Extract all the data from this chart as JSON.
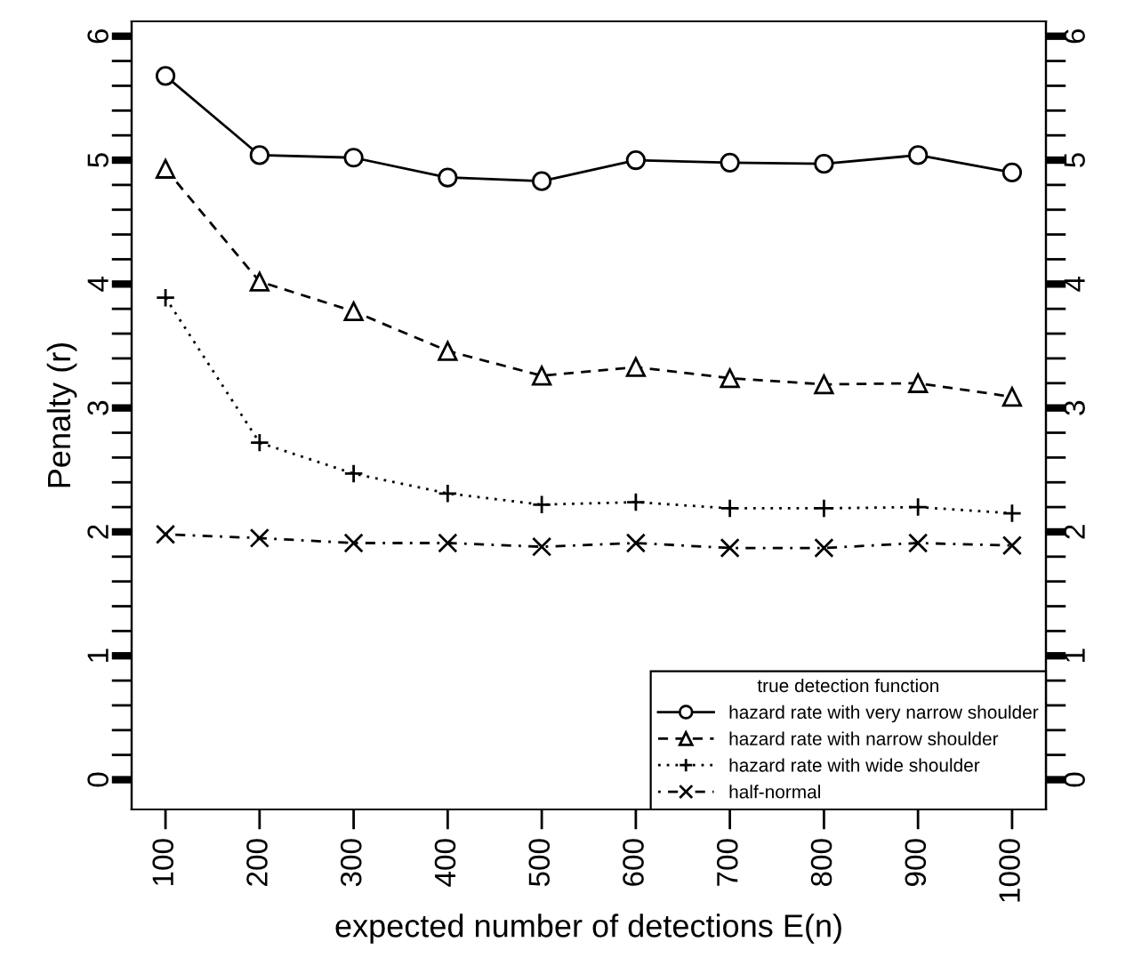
{
  "chart_data": {
    "type": "line",
    "xlabel": "expected number of detections E(n)",
    "ylabel": "Penalty (r)",
    "legend_title": "true detection function",
    "legend": "bottom right",
    "grid": false,
    "x": [
      100,
      200,
      300,
      400,
      500,
      600,
      700,
      800,
      900,
      1000
    ],
    "xlim": [
      64,
      1036
    ],
    "xticks": [
      100,
      200,
      300,
      400,
      500,
      600,
      700,
      800,
      900,
      1000
    ],
    "ylim": [
      -0.24,
      6.12
    ],
    "yticks": [
      0,
      {
        "value": 0.2,
        "label": null
      },
      {
        "value": 0.4,
        "label": null
      },
      {
        "value": 0.6,
        "label": null
      },
      {
        "value": 0.8,
        "label": null
      },
      1,
      {
        "value": 1.2,
        "label": null
      },
      {
        "value": 1.4,
        "label": null
      },
      {
        "value": 1.6,
        "label": null
      },
      {
        "value": 1.8,
        "label": null
      },
      2,
      {
        "value": 2.2,
        "label": null
      },
      {
        "value": 2.4,
        "label": null
      },
      {
        "value": 2.6,
        "label": null
      },
      {
        "value": 2.8,
        "label": null
      },
      3,
      {
        "value": 3.2,
        "label": null
      },
      {
        "value": 3.4,
        "label": null
      },
      {
        "value": 3.6,
        "label": null
      },
      {
        "value": 3.8,
        "label": null
      },
      4,
      {
        "value": 4.2,
        "label": null
      },
      {
        "value": 4.4,
        "label": null
      },
      {
        "value": 4.6,
        "label": null
      },
      {
        "value": 4.8,
        "label": null
      },
      5,
      {
        "value": 5.2,
        "label": null
      },
      {
        "value": 5.4,
        "label": null
      },
      {
        "value": 5.6,
        "label": null
      },
      {
        "value": 5.8,
        "label": null
      },
      6
    ],
    "y2lim": [
      -0.24,
      6.12
    ],
    "y2ticks": [
      0,
      {
        "value": 0.2,
        "label": null
      },
      {
        "value": 0.4,
        "label": null
      },
      {
        "value": 0.6,
        "label": null
      },
      {
        "value": 0.8,
        "label": null
      },
      1,
      {
        "value": 1.2,
        "label": null
      },
      {
        "value": 1.4,
        "label": null
      },
      {
        "value": 1.6,
        "label": null
      },
      {
        "value": 1.8,
        "label": null
      },
      2,
      {
        "value": 2.2,
        "label": null
      },
      {
        "value": 2.4,
        "label": null
      },
      {
        "value": 2.6,
        "label": null
      },
      {
        "value": 2.8,
        "label": null
      },
      3,
      {
        "value": 3.2,
        "label": null
      },
      {
        "value": 3.4,
        "label": null
      },
      {
        "value": 3.6,
        "label": null
      },
      {
        "value": 3.8,
        "label": null
      },
      4,
      {
        "value": 4.2,
        "label": null
      },
      {
        "value": 4.4,
        "label": null
      },
      {
        "value": 4.6,
        "label": null
      },
      {
        "value": 4.8,
        "label": null
      },
      5,
      {
        "value": 5.2,
        "label": null
      },
      {
        "value": 5.4,
        "label": null
      },
      {
        "value": 5.6,
        "label": null
      },
      {
        "value": 5.8,
        "label": null
      },
      6
    ],
    "series": [
      {
        "name": "hazard rate with very narrow shoulder",
        "color": "#000000",
        "marker": "circle",
        "line_style": "solid",
        "values": [
          5.68,
          5.04,
          5.02,
          4.86,
          4.83,
          5.0,
          4.98,
          4.97,
          5.04,
          4.9
        ]
      },
      {
        "name": "hazard rate with narrow shoulder",
        "color": "#000000",
        "marker": "triangle",
        "line_style": "dashed",
        "values": [
          4.93,
          4.02,
          3.78,
          3.46,
          3.26,
          3.33,
          3.24,
          3.19,
          3.2,
          3.09
        ]
      },
      {
        "name": "hazard rate with wide shoulder",
        "color": "#000000",
        "marker": "cross",
        "line_style": "dotted",
        "values": [
          3.89,
          2.72,
          2.47,
          2.31,
          2.22,
          2.24,
          2.19,
          2.19,
          2.2,
          2.15
        ]
      },
      {
        "name": "half-normal",
        "color": "#000000",
        "marker": "x",
        "line_style": "dashdot",
        "values": [
          1.98,
          1.95,
          1.91,
          1.91,
          1.88,
          1.91,
          1.87,
          1.87,
          1.91,
          1.89
        ]
      }
    ]
  }
}
